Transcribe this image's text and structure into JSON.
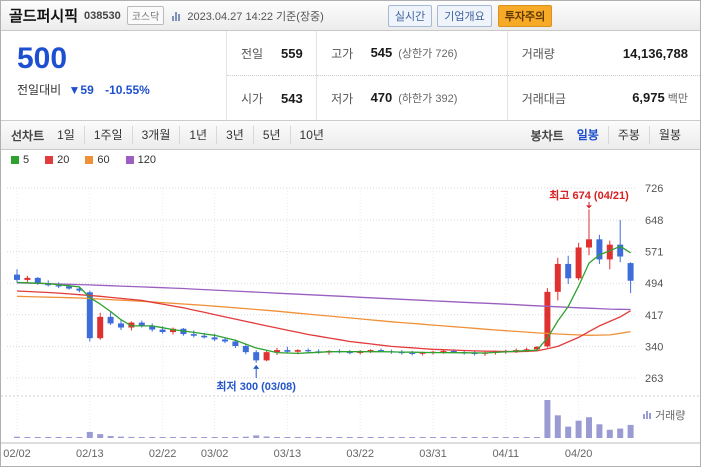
{
  "header": {
    "title": "골드퍼시픽",
    "code": "038530",
    "market_badge": "코스닥",
    "datetime": "2023.04.27 14:22 기준(장중)",
    "badges": {
      "realtime": "실시간",
      "overview": "기업개요",
      "warning": "투자주의"
    }
  },
  "price": {
    "current": "500",
    "change_label": "전일대비",
    "change_arrow": "▼",
    "change_value": "59",
    "change_percent": "-10.55%",
    "table": {
      "prev_label": "전일",
      "prev_value": "559",
      "open_label": "시가",
      "open_value": "543",
      "high_label": "고가",
      "high_value": "545",
      "high_limit": "(상한가 726)",
      "low_label": "저가",
      "low_value": "470",
      "low_limit": "(하한가 392)",
      "volume_label": "거래량",
      "volume_value": "14,136,788",
      "amount_label": "거래대금",
      "amount_value": "6,975",
      "amount_unit": "백만"
    }
  },
  "tabs": {
    "line_label": "선차트",
    "line_items": [
      "1일",
      "1주일",
      "3개월",
      "1년",
      "3년",
      "5년",
      "10년"
    ],
    "candle_label": "봉차트",
    "candle_items": [
      "일봉",
      "주봉",
      "월봉"
    ],
    "selected": "일봉"
  },
  "chart_data": {
    "type": "candlestick",
    "ylim": [
      263,
      726
    ],
    "yticks": [
      726,
      648,
      571,
      494,
      417,
      340,
      263
    ],
    "xticks": [
      {
        "index": 0,
        "label": "02/02"
      },
      {
        "index": 7,
        "label": "02/13"
      },
      {
        "index": 14,
        "label": "02/22"
      },
      {
        "index": 19,
        "label": "03/02"
      },
      {
        "index": 26,
        "label": "03/13"
      },
      {
        "index": 33,
        "label": "03/22"
      },
      {
        "index": 40,
        "label": "03/31"
      },
      {
        "index": 47,
        "label": "04/11"
      },
      {
        "index": 54,
        "label": "04/20"
      }
    ],
    "legend": [
      {
        "label": "5",
        "color": "#2ea12e"
      },
      {
        "label": "20",
        "color": "#e23b3b"
      },
      {
        "label": "60",
        "color": "#f0913a"
      },
      {
        "label": "120",
        "color": "#9a5fc0"
      }
    ],
    "volume_label": "거래량",
    "volume_unit": "millions",
    "annotations": {
      "high": {
        "text": "최고 674 (04/21)",
        "index": 55,
        "value": 674
      },
      "low": {
        "text": "최저 300 (03/08)",
        "index": 23,
        "value": 300
      }
    },
    "colors": {
      "up": "#e03131",
      "down": "#3e6ddb",
      "volume": "#9b9bd4",
      "grid": "#d9d9d9",
      "annotation_high": "#d62020",
      "annotation_low": "#2456c8"
    },
    "ohlcv": [
      [
        515,
        528,
        496,
        502,
        1.4
      ],
      [
        502,
        512,
        494,
        507,
        0.9
      ],
      [
        507,
        509,
        490,
        494,
        0.7
      ],
      [
        494,
        501,
        486,
        489,
        0.5
      ],
      [
        489,
        496,
        482,
        486,
        0.5
      ],
      [
        486,
        491,
        478,
        481,
        0.4
      ],
      [
        481,
        486,
        472,
        476,
        0.5
      ],
      [
        472,
        476,
        352,
        360,
        6.5
      ],
      [
        360,
        422,
        356,
        412,
        4.2
      ],
      [
        412,
        426,
        392,
        396,
        2.1
      ],
      [
        396,
        406,
        380,
        386,
        1.5
      ],
      [
        386,
        401,
        379,
        398,
        1.2
      ],
      [
        398,
        403,
        386,
        390,
        0.9
      ],
      [
        390,
        396,
        376,
        381,
        0.8
      ],
      [
        381,
        389,
        371,
        375,
        0.9
      ],
      [
        375,
        386,
        369,
        383,
        0.7
      ],
      [
        383,
        385,
        366,
        370,
        0.6
      ],
      [
        370,
        379,
        362,
        366,
        0.5
      ],
      [
        366,
        373,
        359,
        362,
        0.5
      ],
      [
        362,
        371,
        353,
        357,
        0.6
      ],
      [
        357,
        363,
        348,
        352,
        0.5
      ],
      [
        352,
        357,
        336,
        341,
        0.9
      ],
      [
        341,
        345,
        321,
        326,
        1.4
      ],
      [
        326,
        331,
        300,
        306,
        2.8
      ],
      [
        306,
        331,
        304,
        326,
        1.6
      ],
      [
        326,
        336,
        319,
        331,
        1.0
      ],
      [
        331,
        339,
        323,
        327,
        0.7
      ],
      [
        327,
        333,
        321,
        331,
        0.6
      ],
      [
        331,
        335,
        325,
        328,
        0.5
      ],
      [
        328,
        333,
        322,
        325,
        0.4
      ],
      [
        325,
        331,
        320,
        329,
        0.4
      ],
      [
        329,
        333,
        323,
        326,
        0.4
      ],
      [
        326,
        331,
        321,
        324,
        0.3
      ],
      [
        324,
        331,
        320,
        329,
        0.4
      ],
      [
        329,
        333,
        324,
        331,
        0.3
      ],
      [
        331,
        335,
        326,
        328,
        0.3
      ],
      [
        328,
        332,
        322,
        326,
        0.3
      ],
      [
        326,
        331,
        320,
        324,
        0.3
      ],
      [
        324,
        329,
        318,
        322,
        0.3
      ],
      [
        322,
        327,
        318,
        325,
        0.3
      ],
      [
        325,
        329,
        320,
        327,
        0.4
      ],
      [
        327,
        331,
        322,
        329,
        0.4
      ],
      [
        329,
        333,
        324,
        326,
        0.3
      ],
      [
        326,
        331,
        320,
        324,
        0.3
      ],
      [
        324,
        329,
        318,
        322,
        0.3
      ],
      [
        322,
        327,
        317,
        325,
        0.3
      ],
      [
        325,
        330,
        320,
        327,
        0.4
      ],
      [
        327,
        332,
        322,
        329,
        0.4
      ],
      [
        329,
        335,
        324,
        331,
        0.5
      ],
      [
        331,
        337,
        326,
        333,
        0.6
      ],
      [
        333,
        341,
        328,
        339,
        0.9
      ],
      [
        340,
        482,
        337,
        473,
        41.0
      ],
      [
        473,
        556,
        452,
        541,
        24.5
      ],
      [
        541,
        561,
        492,
        506,
        12.3
      ],
      [
        506,
        592,
        501,
        581,
        18.7
      ],
      [
        581,
        674,
        562,
        601,
        22.4
      ],
      [
        601,
        612,
        541,
        552,
        14.8
      ],
      [
        552,
        598,
        528,
        588,
        8.9
      ],
      [
        588,
        648,
        545,
        559,
        10.2
      ],
      [
        543,
        545,
        470,
        500,
        14.1
      ]
    ],
    "ma": {
      "ma5": {
        "color": "#2ea12e",
        "points": [
          [
            0,
            496
          ],
          [
            3,
            493
          ],
          [
            6,
            485
          ],
          [
            7,
            459
          ],
          [
            8,
            443
          ],
          [
            9,
            425
          ],
          [
            10,
            405
          ],
          [
            11,
            390
          ],
          [
            13,
            390
          ],
          [
            15,
            381
          ],
          [
            17,
            374
          ],
          [
            19,
            367
          ],
          [
            21,
            355
          ],
          [
            23,
            336
          ],
          [
            25,
            325
          ],
          [
            27,
            323
          ],
          [
            30,
            327
          ],
          [
            35,
            327
          ],
          [
            40,
            325
          ],
          [
            45,
            324
          ],
          [
            50,
            331
          ],
          [
            51,
            360
          ],
          [
            52,
            402
          ],
          [
            53,
            437
          ],
          [
            54,
            487
          ],
          [
            55,
            543
          ],
          [
            56,
            563
          ],
          [
            57,
            573
          ],
          [
            58,
            584
          ],
          [
            59,
            568
          ]
        ]
      },
      "ma20": {
        "color": "#e23b3b",
        "points": [
          [
            0,
            475
          ],
          [
            4,
            470
          ],
          [
            8,
            462
          ],
          [
            12,
            452
          ],
          [
            16,
            434
          ],
          [
            20,
            412
          ],
          [
            24,
            390
          ],
          [
            28,
            369
          ],
          [
            32,
            352
          ],
          [
            36,
            340
          ],
          [
            40,
            333
          ],
          [
            44,
            329
          ],
          [
            48,
            327
          ],
          [
            50,
            329
          ],
          [
            52,
            340
          ],
          [
            54,
            362
          ],
          [
            56,
            390
          ],
          [
            58,
            412
          ],
          [
            59,
            427
          ]
        ]
      },
      "ma60": {
        "color": "#f0913a",
        "points": [
          [
            0,
            462
          ],
          [
            6,
            458
          ],
          [
            12,
            450
          ],
          [
            18,
            440
          ],
          [
            24,
            428
          ],
          [
            30,
            414
          ],
          [
            36,
            400
          ],
          [
            42,
            388
          ],
          [
            46,
            380
          ],
          [
            50,
            373
          ],
          [
            53,
            369
          ],
          [
            55,
            367
          ],
          [
            57,
            368
          ],
          [
            59,
            376
          ]
        ]
      },
      "ma120": {
        "color": "#9a5fc0",
        "points": [
          [
            0,
            495
          ],
          [
            8,
            489
          ],
          [
            16,
            481
          ],
          [
            24,
            471
          ],
          [
            32,
            461
          ],
          [
            40,
            451
          ],
          [
            46,
            444
          ],
          [
            50,
            439
          ],
          [
            54,
            434
          ],
          [
            57,
            431
          ],
          [
            59,
            430
          ]
        ]
      }
    }
  }
}
